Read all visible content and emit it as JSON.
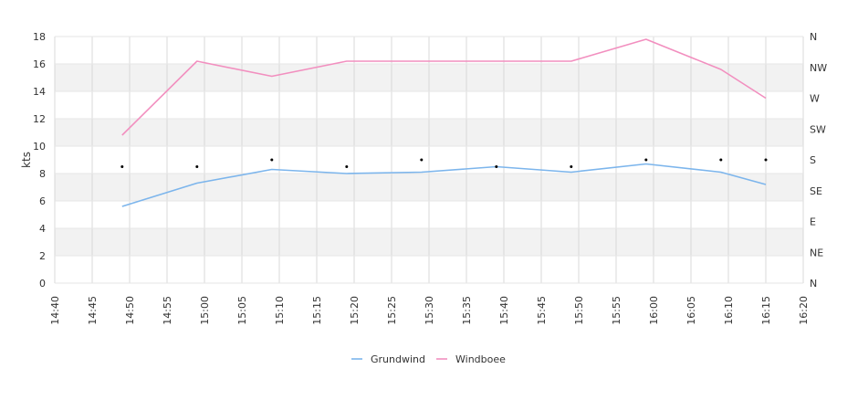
{
  "chart_data": {
    "type": "line",
    "ylabel": "kts",
    "ylim": [
      0,
      18
    ],
    "yticks": [
      "0",
      "2",
      "4",
      "6",
      "8",
      "10",
      "12",
      "14",
      "16",
      "18"
    ],
    "xlim": [
      "14:40",
      "16:20"
    ],
    "xticks": [
      "14:40",
      "14:45",
      "14:50",
      "14:55",
      "15:00",
      "15:05",
      "15:10",
      "15:15",
      "15:20",
      "15:25",
      "15:30",
      "15:35",
      "15:40",
      "15:45",
      "15:50",
      "15:55",
      "16:00",
      "16:05",
      "16:10",
      "16:15",
      "16:20"
    ],
    "right_axis_labels": [
      "N",
      "NE",
      "E",
      "SE",
      "S",
      "SW",
      "W",
      "NW",
      "N"
    ],
    "x": [
      "14:49",
      "14:59",
      "15:09",
      "15:19",
      "15:29",
      "15:39",
      "15:49",
      "15:59",
      "16:09",
      "16:15"
    ],
    "series": [
      {
        "name": "Grundwind",
        "color": "#7cb5ec",
        "values": [
          5.6,
          7.3,
          8.3,
          8.0,
          8.1,
          8.5,
          8.1,
          8.7,
          8.1,
          7.2
        ]
      },
      {
        "name": "Windboee",
        "color": "#f28fbf",
        "values": [
          10.8,
          16.2,
          15.1,
          16.2,
          16.2,
          16.2,
          16.2,
          17.8,
          15.6,
          13.5
        ]
      }
    ],
    "direction_markers": {
      "x": [
        "14:49",
        "14:59",
        "15:09",
        "15:19",
        "15:29",
        "15:39",
        "15:49",
        "15:59",
        "16:09",
        "16:15"
      ],
      "values": [
        "S",
        "S",
        "S",
        "S",
        "S",
        "S",
        "S",
        "S",
        "S",
        "S"
      ],
      "degrees": [
        170,
        170,
        180,
        170,
        180,
        170,
        170,
        180,
        180,
        180
      ]
    },
    "grid": true,
    "legend": "bottom-center"
  }
}
